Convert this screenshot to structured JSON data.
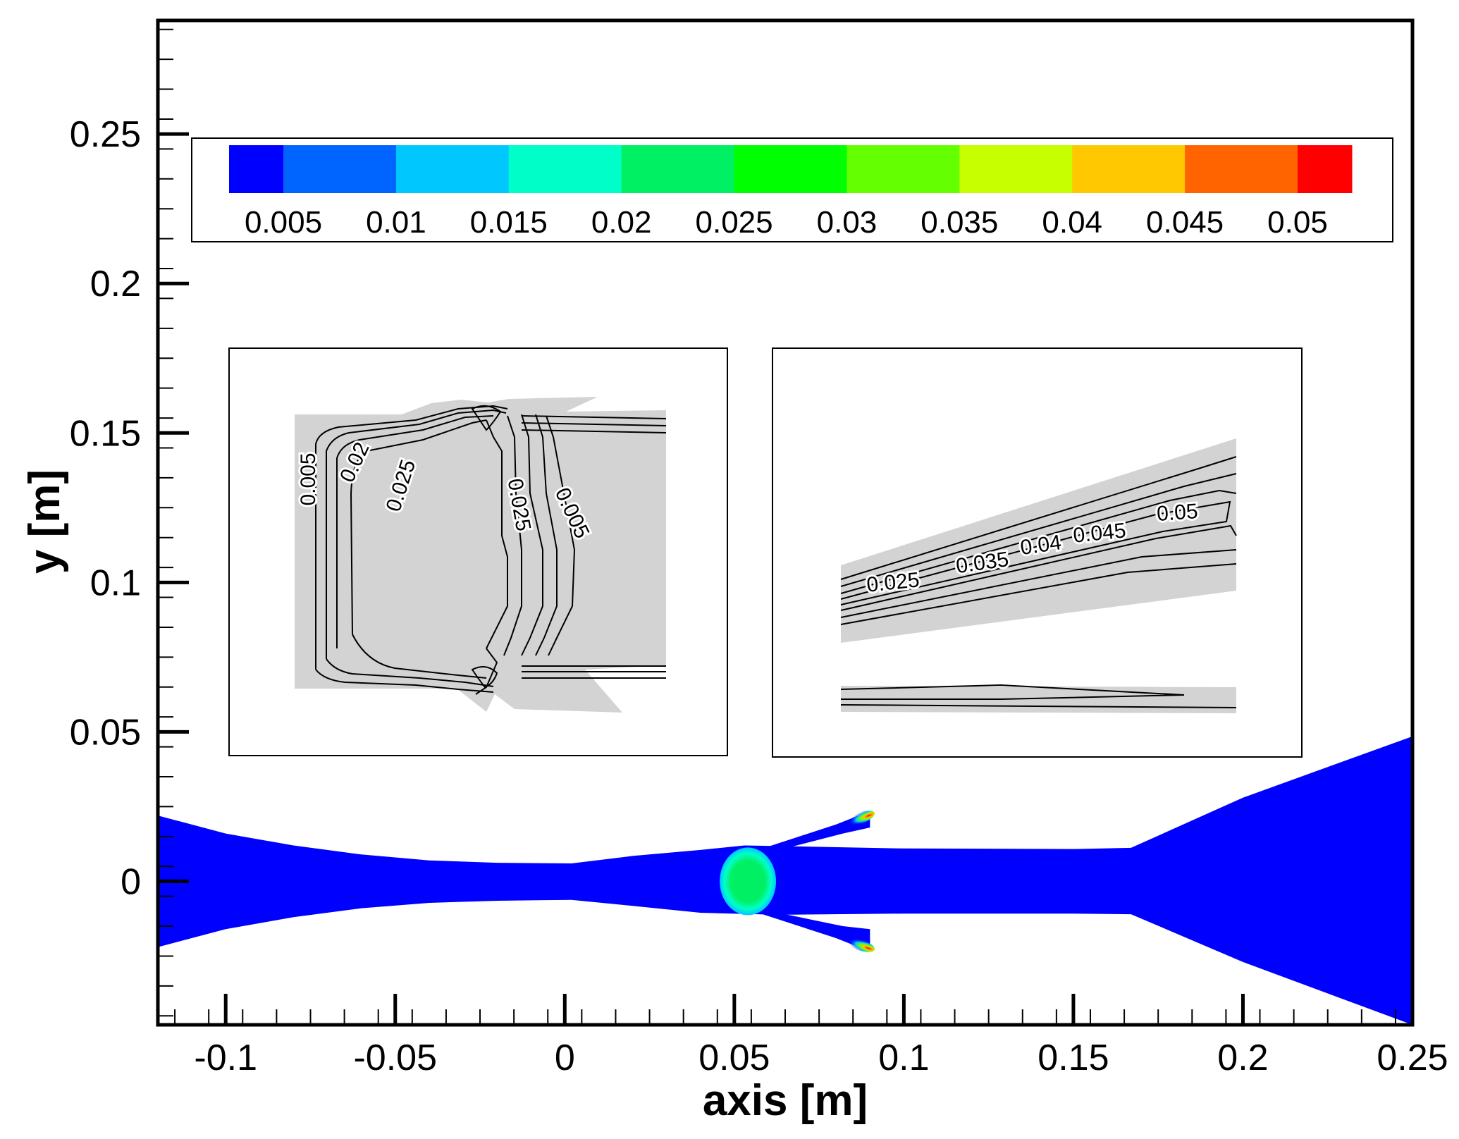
{
  "chart_data": {
    "type": "heatmap",
    "xlabel": "axis [m]",
    "ylabel": "y [m]",
    "xlim": [
      -0.12,
      0.25
    ],
    "ylim": [
      -0.048,
      0.288
    ],
    "x_ticks": [
      -0.1,
      -0.05,
      0,
      0.05,
      0.1,
      0.15,
      0.2,
      0.25
    ],
    "x_tick_labels": [
      "-0.1",
      "-0.05",
      "0",
      "0.05",
      "0.1",
      "0.15",
      "0.2",
      "0.25"
    ],
    "y_ticks": [
      0,
      0.05,
      0.1,
      0.15,
      0.2,
      0.25
    ],
    "y_tick_labels": [
      "0",
      "0.05",
      "0.1",
      "0.15",
      "0.2",
      "0.25"
    ],
    "grid": false,
    "colorbar": {
      "placement": "top",
      "levels": [
        0.005,
        0.01,
        0.015,
        0.02,
        0.025,
        0.03,
        0.035,
        0.04,
        0.045,
        0.05
      ],
      "labels": [
        "0.005",
        "0.01",
        "0.015",
        "0.02",
        "0.025",
        "0.03",
        "0.035",
        "0.04",
        "0.045",
        "0.05"
      ],
      "colors": [
        "#0000ff",
        "#0064ff",
        "#00c8ff",
        "#00ffc8",
        "#00f064",
        "#00ff00",
        "#64ff00",
        "#c8ff00",
        "#ffc800",
        "#ff6400",
        "#ff0000"
      ]
    },
    "field": {
      "outline": [
        [
          -0.12,
          0.022
        ],
        [
          -0.1,
          0.016
        ],
        [
          -0.08,
          0.012
        ],
        [
          -0.06,
          0.009
        ],
        [
          -0.04,
          0.007
        ],
        [
          -0.02,
          0.0062
        ],
        [
          0.002,
          0.006
        ],
        [
          0.02,
          0.0085
        ],
        [
          0.04,
          0.0105
        ],
        [
          0.053,
          0.012
        ],
        [
          0.1,
          0.011
        ],
        [
          0.15,
          0.0108
        ],
        [
          0.167,
          0.0112
        ],
        [
          0.2,
          0.028
        ],
        [
          0.25,
          0.0485
        ],
        [
          0.25,
          -0.048
        ],
        [
          0.2,
          -0.027
        ],
        [
          0.167,
          -0.011
        ],
        [
          0.15,
          -0.0108
        ],
        [
          0.1,
          -0.0108
        ],
        [
          0.063,
          -0.0112
        ],
        [
          0.04,
          -0.0105
        ],
        [
          0.02,
          -0.0082
        ],
        [
          0.002,
          -0.0062
        ],
        [
          -0.02,
          -0.0065
        ],
        [
          -0.04,
          -0.0072
        ],
        [
          -0.06,
          -0.009
        ],
        [
          -0.08,
          -0.012
        ],
        [
          -0.1,
          -0.016
        ],
        [
          -0.12,
          -0.022
        ]
      ],
      "background_level": 0.005,
      "upper_nozzle": [
        [
          0.057,
          0.0105
        ],
        [
          0.08,
          0.019
        ],
        [
          0.09,
          0.0235
        ],
        [
          0.09,
          0.018
        ],
        [
          0.082,
          0.016
        ],
        [
          0.065,
          0.011
        ]
      ],
      "lower_nozzle": [
        [
          0.057,
          -0.0105
        ],
        [
          0.08,
          -0.019
        ],
        [
          0.09,
          -0.0235
        ],
        [
          0.09,
          -0.016
        ],
        [
          0.082,
          -0.015
        ],
        [
          0.065,
          -0.011
        ]
      ]
    },
    "insets": [
      {
        "name": "left",
        "contour_labels": [
          "0.005",
          "0.02",
          "0.025",
          "0.025",
          "0.005"
        ]
      },
      {
        "name": "right",
        "contour_labels": [
          "0.025",
          "0.035",
          "0.04",
          "0.045",
          "0.05"
        ]
      }
    ]
  }
}
